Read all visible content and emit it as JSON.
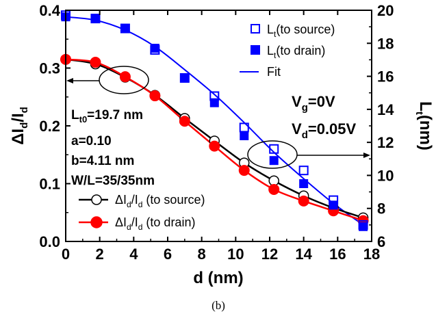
{
  "chart_data": {
    "type": "line",
    "caption": "(b)",
    "x": [
      0,
      1.75,
      3.5,
      5.25,
      7,
      8.75,
      10.5,
      12.25,
      14,
      15.75,
      17.5
    ],
    "xlabel": {
      "main": "d (nm)"
    },
    "ylabel_left": {
      "a": "ΔI",
      "a_sub": "d",
      "b": "/I",
      "b_sub": "d"
    },
    "ylabel_right": {
      "main": "L",
      "sub": "t",
      "rest": "(nm)"
    },
    "xlim": [
      0,
      18
    ],
    "ylim_left": [
      0,
      0.4
    ],
    "ylim_right": [
      6,
      20
    ],
    "x_ticks": [
      "0",
      "2",
      "4",
      "6",
      "8",
      "10",
      "12",
      "14",
      "16",
      "18"
    ],
    "y_left_ticks": [
      "0.0",
      "0.1",
      "0.2",
      "0.3",
      "0.4"
    ],
    "y_right_ticks": [
      "6",
      "8",
      "10",
      "12",
      "14",
      "16",
      "18",
      "20"
    ],
    "series": [
      {
        "name": "L_t(to source)",
        "axis": "right",
        "marker": "open-square",
        "color": "#0000ff",
        "values": [
          19.7,
          19.5,
          18.9,
          17.6,
          15.9,
          14.8,
          12.9,
          11.6,
          10.3,
          8.5,
          7.0
        ]
      },
      {
        "name": "L_t(to drain)",
        "axis": "right",
        "marker": "filled-square",
        "color": "#0000ff",
        "values": [
          19.6,
          19.5,
          18.9,
          17.7,
          15.9,
          14.4,
          12.4,
          10.9,
          9.5,
          8.2,
          6.9
        ]
      },
      {
        "name": "Fit",
        "axis": "right",
        "marker": "none",
        "color": "#0000ff",
        "values": [
          19.6,
          19.4,
          18.8,
          17.8,
          16.4,
          14.9,
          13.2,
          11.4,
          9.8,
          8.3,
          7.0
        ]
      },
      {
        "name": "ΔI_d/I_d (to source)",
        "axis": "left",
        "marker": "open-circle",
        "color": "#000000",
        "values": [
          0.315,
          0.307,
          0.284,
          0.253,
          0.213,
          0.174,
          0.136,
          0.105,
          0.079,
          0.058,
          0.041
        ]
      },
      {
        "name": "ΔI_d/I_d (to drain)",
        "axis": "left",
        "marker": "filled-circle",
        "color": "#ff0000",
        "values": [
          0.315,
          0.31,
          0.285,
          0.252,
          0.208,
          0.165,
          0.123,
          0.09,
          0.07,
          0.053,
          0.036
        ]
      }
    ],
    "legend_top": [
      {
        "main": "L",
        "sub": "t",
        "rest": "(to source)"
      },
      {
        "main": "L",
        "sub": "t",
        "rest": "(to drain)"
      },
      {
        "main": "Fit",
        "sub": "",
        "rest": ""
      }
    ],
    "legend_bottom": [
      {
        "a": "ΔI",
        "a_sub": "d",
        "b": "/I",
        "b_sub": "d",
        "rest": " (to source)"
      },
      {
        "a": "ΔI",
        "a_sub": "d",
        "b": "/I",
        "b_sub": "d",
        "rest": " (to drain)"
      }
    ],
    "params": {
      "lt0": {
        "main": "L",
        "sub": "t0",
        "rest": "=19.7 nm"
      },
      "a": "a=0.10",
      "b": "b=4.11 nm",
      "wl": "W/L=35/35nm"
    },
    "conditions": {
      "vg": {
        "main": "V",
        "sub": "g",
        "rest": "=0V"
      },
      "vd": {
        "main": "V",
        "sub": "d",
        "rest": "=0.05V"
      }
    }
  }
}
